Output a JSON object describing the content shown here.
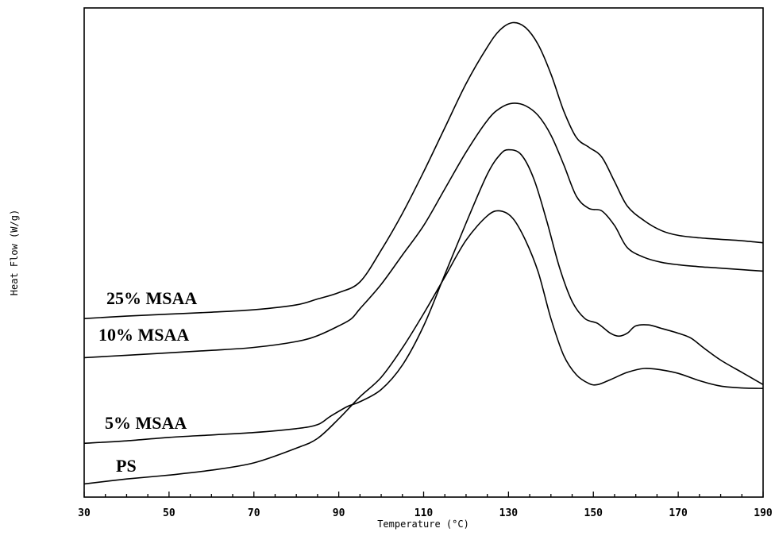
{
  "chart_data": {
    "type": "line",
    "title": "",
    "xlabel": "Temperature (°C)",
    "ylabel": "Heat Flow (W/g)",
    "xlim": [
      30,
      190
    ],
    "ylim": [
      0,
      100
    ],
    "x_ticks": [
      30,
      50,
      70,
      90,
      110,
      130,
      150,
      170,
      190
    ],
    "y_ticks_shown": false,
    "grid": false,
    "series": [
      {
        "name": "25% MSAA",
        "x": [
          30,
          40,
          50,
          60,
          70,
          80,
          85,
          90,
          95,
          100,
          105,
          110,
          115,
          120,
          125,
          128,
          131,
          134,
          137,
          140,
          143,
          146,
          149,
          152,
          155,
          158,
          162,
          166,
          170,
          175,
          180,
          185,
          190
        ],
        "y": [
          36.5,
          37.0,
          37.4,
          37.8,
          38.3,
          39.3,
          40.5,
          41.8,
          44.0,
          50.5,
          58.0,
          66.5,
          75.5,
          84.5,
          92.0,
          95.5,
          97.0,
          96.0,
          92.5,
          86.5,
          79.0,
          73.5,
          71.5,
          69.5,
          64.5,
          59.5,
          56.5,
          54.5,
          53.5,
          53.0,
          52.7,
          52.4,
          52.0
        ]
      },
      {
        "name": "10% MSAA",
        "x": [
          30,
          40,
          50,
          60,
          70,
          80,
          85,
          90,
          93,
          95,
          100,
          105,
          110,
          115,
          120,
          125,
          128,
          131,
          134,
          137,
          140,
          143,
          146,
          149,
          152,
          155,
          158,
          162,
          166,
          170,
          175,
          180,
          185,
          190
        ],
        "y": [
          28.5,
          29.0,
          29.5,
          30.0,
          30.6,
          31.8,
          33.0,
          35.0,
          36.5,
          38.5,
          43.5,
          49.5,
          55.5,
          63.0,
          70.5,
          77.0,
          79.5,
          80.5,
          80.0,
          78.0,
          74.0,
          68.0,
          61.5,
          59.0,
          58.5,
          55.5,
          51.0,
          49.0,
          48.0,
          47.5,
          47.1,
          46.8,
          46.5,
          46.2
        ]
      },
      {
        "name": "5% MSAA",
        "x": [
          30,
          40,
          50,
          60,
          70,
          80,
          85,
          88,
          92,
          95,
          100,
          105,
          110,
          115,
          120,
          125,
          128,
          130,
          133,
          136,
          139,
          142,
          145,
          148,
          151,
          154,
          156,
          158,
          160,
          163,
          166,
          170,
          173,
          176,
          180,
          185,
          190
        ],
        "y": [
          11.0,
          11.5,
          12.2,
          12.7,
          13.2,
          14.0,
          14.8,
          16.5,
          18.5,
          19.5,
          22.0,
          27.0,
          35.0,
          45.5,
          56.0,
          66.0,
          70.0,
          71.0,
          70.0,
          65.0,
          56.5,
          47.0,
          40.0,
          36.5,
          35.5,
          33.5,
          32.9,
          33.5,
          35.0,
          35.2,
          34.5,
          33.5,
          32.5,
          30.5,
          28.0,
          25.5,
          23.0
        ]
      },
      {
        "name": "PS",
        "x": [
          30,
          40,
          50,
          60,
          70,
          80,
          85,
          90,
          95,
          100,
          105,
          110,
          115,
          120,
          125,
          128,
          131,
          134,
          137,
          140,
          143,
          146,
          149,
          151,
          154,
          158,
          162,
          166,
          170,
          175,
          180,
          185,
          190
        ],
        "y": [
          2.7,
          3.7,
          4.5,
          5.5,
          7.0,
          10.0,
          12.0,
          16.0,
          20.5,
          24.5,
          30.5,
          37.5,
          45.0,
          52.5,
          57.5,
          58.5,
          57.0,
          52.5,
          46.0,
          36.5,
          29.0,
          25.0,
          23.2,
          23.0,
          24.0,
          25.5,
          26.3,
          26.0,
          25.3,
          23.8,
          22.7,
          22.3,
          22.2
        ]
      }
    ],
    "annotations": [
      "25% MSAA",
      "10% MSAA",
      "5% MSAA",
      "PS"
    ]
  }
}
